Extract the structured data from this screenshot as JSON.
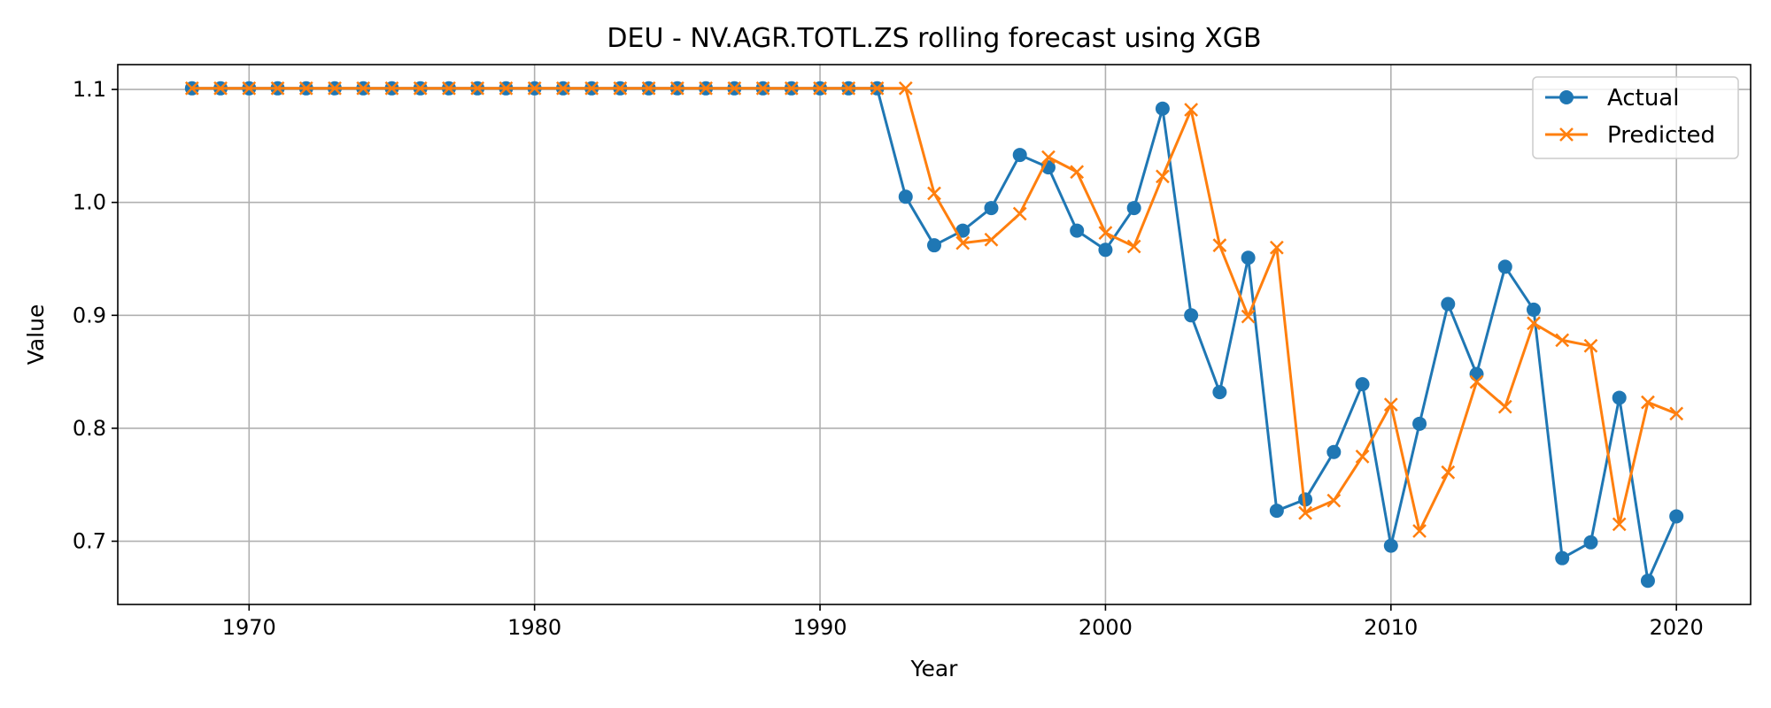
{
  "chart_data": {
    "type": "line",
    "title": "DEU - NV.AGR.TOTL.ZS rolling forecast using XGB",
    "xlabel": "Year",
    "ylabel": "Value",
    "xlim": [
      1965.4,
      2022.6
    ],
    "ylim": [
      0.644,
      1.122
    ],
    "x_ticks": [
      1970,
      1980,
      1990,
      2000,
      2010,
      2020
    ],
    "y_ticks": [
      0.7,
      0.8,
      0.9,
      1.0,
      1.1
    ],
    "y_tick_labels": [
      "0.7",
      "0.8",
      "0.9",
      "1.0",
      "1.1"
    ],
    "grid": true,
    "legend_position": "top-right",
    "x": [
      1968,
      1969,
      1970,
      1971,
      1972,
      1973,
      1974,
      1975,
      1976,
      1977,
      1978,
      1979,
      1980,
      1981,
      1982,
      1983,
      1984,
      1985,
      1986,
      1987,
      1988,
      1989,
      1990,
      1991,
      1992,
      1993,
      1994,
      1995,
      1996,
      1997,
      1998,
      1999,
      2000,
      2001,
      2002,
      2003,
      2004,
      2005,
      2006,
      2007,
      2008,
      2009,
      2010,
      2011,
      2012,
      2013,
      2014,
      2015,
      2016,
      2017,
      2018,
      2019,
      2020
    ],
    "series": [
      {
        "name": "Actual",
        "color": "#1f77b4",
        "marker": "circle",
        "values": [
          1.101,
          1.101,
          1.101,
          1.101,
          1.101,
          1.101,
          1.101,
          1.101,
          1.101,
          1.101,
          1.101,
          1.101,
          1.101,
          1.101,
          1.101,
          1.101,
          1.101,
          1.101,
          1.101,
          1.101,
          1.101,
          1.101,
          1.101,
          1.101,
          1.101,
          1.005,
          0.962,
          0.975,
          0.995,
          1.042,
          1.031,
          0.975,
          0.958,
          0.995,
          1.083,
          0.9,
          0.832,
          0.951,
          0.727,
          0.737,
          0.779,
          0.839,
          0.696,
          0.804,
          0.91,
          0.848,
          0.943,
          0.905,
          0.685,
          0.699,
          0.827,
          0.665,
          0.722
        ]
      },
      {
        "name": "Predicted",
        "color": "#ff7f0e",
        "marker": "x",
        "values": [
          1.101,
          1.101,
          1.101,
          1.101,
          1.101,
          1.101,
          1.101,
          1.101,
          1.101,
          1.101,
          1.101,
          1.101,
          1.101,
          1.101,
          1.101,
          1.101,
          1.101,
          1.101,
          1.101,
          1.101,
          1.101,
          1.101,
          1.101,
          1.101,
          1.101,
          1.101,
          1.008,
          0.964,
          0.967,
          0.99,
          1.04,
          1.027,
          0.973,
          0.961,
          1.023,
          1.082,
          0.962,
          0.899,
          0.96,
          0.725,
          0.736,
          0.775,
          0.821,
          0.709,
          0.761,
          0.841,
          0.819,
          0.893,
          0.878,
          0.873,
          0.715,
          0.823,
          0.813
        ]
      }
    ]
  }
}
